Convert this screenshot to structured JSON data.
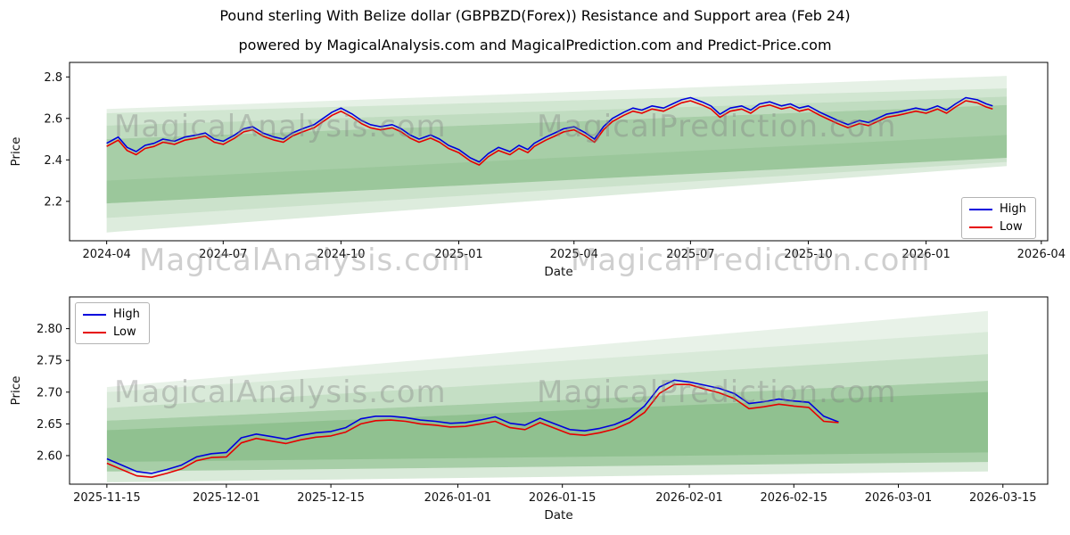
{
  "title": "Pound sterling With Belize dollar (GBPBZD(Forex)) Resistance and Support area (Feb 24)",
  "subtitle": "powered by MagicalAnalysis.com and MagicalPrediction.com and Predict-Price.com",
  "watermarks": {
    "analysis": "MagicalAnalysis.com",
    "prediction": "MagicalPrediction.com"
  },
  "colors": {
    "high_line": "#0000dd",
    "low_line": "#e60000",
    "band_green": "#2e8b2e",
    "watermark_gray": "#808080"
  },
  "chart_data": [
    {
      "type": "line",
      "title": "",
      "xlabel": "Date",
      "ylabel": "Price",
      "legend_position": "lower right",
      "grid": false,
      "xlim": [
        "2024-03-03",
        "2026-04-06"
      ],
      "ylim": [
        2.01,
        2.87
      ],
      "xticks": [
        {
          "label": "2024-04",
          "date": "2024-04-01"
        },
        {
          "label": "2024-07",
          "date": "2024-07-01"
        },
        {
          "label": "2024-10",
          "date": "2024-10-01"
        },
        {
          "label": "2025-01",
          "date": "2025-01-01"
        },
        {
          "label": "2025-04",
          "date": "2025-04-01"
        },
        {
          "label": "2025-07",
          "date": "2025-07-01"
        },
        {
          "label": "2025-10",
          "date": "2025-10-01"
        },
        {
          "label": "2026-01",
          "date": "2026-01-01"
        },
        {
          "label": "2026-04",
          "date": "2026-04-01"
        }
      ],
      "yticks": [
        {
          "label": "2.2",
          "value": 2.2
        },
        {
          "label": "2.4",
          "value": 2.4
        },
        {
          "label": "2.6",
          "value": 2.6
        },
        {
          "label": "2.8",
          "value": 2.8
        }
      ],
      "dates": [
        "2024-04-01",
        "2024-04-10",
        "2024-04-17",
        "2024-04-24",
        "2024-05-01",
        "2024-05-08",
        "2024-05-15",
        "2024-05-24",
        "2024-06-01",
        "2024-06-10",
        "2024-06-17",
        "2024-06-24",
        "2024-07-01",
        "2024-07-10",
        "2024-07-17",
        "2024-07-24",
        "2024-08-01",
        "2024-08-10",
        "2024-08-17",
        "2024-08-24",
        "2024-09-01",
        "2024-09-10",
        "2024-09-17",
        "2024-09-24",
        "2024-10-01",
        "2024-10-10",
        "2024-10-17",
        "2024-10-24",
        "2024-11-01",
        "2024-11-10",
        "2024-11-17",
        "2024-11-24",
        "2024-12-01",
        "2024-12-10",
        "2024-12-17",
        "2024-12-24",
        "2025-01-01",
        "2025-01-10",
        "2025-01-17",
        "2025-01-24",
        "2025-02-01",
        "2025-02-10",
        "2025-02-17",
        "2025-02-24",
        "2025-03-01",
        "2025-03-10",
        "2025-03-17",
        "2025-03-24",
        "2025-04-01",
        "2025-04-10",
        "2025-04-17",
        "2025-04-24",
        "2025-05-01",
        "2025-05-10",
        "2025-05-17",
        "2025-05-24",
        "2025-06-01",
        "2025-06-10",
        "2025-06-17",
        "2025-06-24",
        "2025-07-01",
        "2025-07-10",
        "2025-07-17",
        "2025-07-24",
        "2025-08-01",
        "2025-08-10",
        "2025-08-17",
        "2025-08-24",
        "2025-09-01",
        "2025-09-10",
        "2025-09-17",
        "2025-09-24",
        "2025-10-01",
        "2025-10-10",
        "2025-10-17",
        "2025-10-24",
        "2025-11-01",
        "2025-11-10",
        "2025-11-17",
        "2025-11-24",
        "2025-12-01",
        "2025-12-10",
        "2025-12-17",
        "2025-12-24",
        "2026-01-01",
        "2026-01-10",
        "2026-01-17",
        "2026-01-24",
        "2026-02-01",
        "2026-02-10",
        "2026-02-17",
        "2026-02-22"
      ],
      "series": [
        {
          "name": "High",
          "color": "#0000dd",
          "values": [
            2.48,
            2.51,
            2.46,
            2.44,
            2.47,
            2.48,
            2.5,
            2.49,
            2.51,
            2.52,
            2.53,
            2.5,
            2.49,
            2.52,
            2.55,
            2.56,
            2.53,
            2.51,
            2.5,
            2.53,
            2.55,
            2.57,
            2.6,
            2.63,
            2.65,
            2.62,
            2.59,
            2.57,
            2.56,
            2.57,
            2.55,
            2.52,
            2.5,
            2.52,
            2.5,
            2.47,
            2.45,
            2.41,
            2.39,
            2.43,
            2.46,
            2.44,
            2.47,
            2.45,
            2.48,
            2.51,
            2.53,
            2.55,
            2.56,
            2.53,
            2.5,
            2.56,
            2.6,
            2.63,
            2.65,
            2.64,
            2.66,
            2.65,
            2.67,
            2.69,
            2.7,
            2.68,
            2.66,
            2.62,
            2.65,
            2.66,
            2.64,
            2.67,
            2.68,
            2.66,
            2.67,
            2.65,
            2.66,
            2.63,
            2.61,
            2.59,
            2.57,
            2.59,
            2.58,
            2.6,
            2.62,
            2.63,
            2.64,
            2.65,
            2.64,
            2.66,
            2.64,
            2.67,
            2.7,
            2.69,
            2.67,
            2.66
          ]
        },
        {
          "name": "Low",
          "color": "#e60000",
          "values": [
            2.465,
            2.495,
            2.445,
            2.425,
            2.455,
            2.465,
            2.485,
            2.475,
            2.495,
            2.505,
            2.515,
            2.485,
            2.475,
            2.505,
            2.535,
            2.545,
            2.515,
            2.495,
            2.485,
            2.515,
            2.535,
            2.555,
            2.585,
            2.615,
            2.635,
            2.605,
            2.575,
            2.555,
            2.545,
            2.555,
            2.535,
            2.505,
            2.485,
            2.505,
            2.485,
            2.455,
            2.435,
            2.395,
            2.375,
            2.415,
            2.445,
            2.425,
            2.455,
            2.435,
            2.465,
            2.495,
            2.515,
            2.535,
            2.545,
            2.515,
            2.485,
            2.545,
            2.585,
            2.615,
            2.635,
            2.625,
            2.645,
            2.635,
            2.655,
            2.675,
            2.685,
            2.665,
            2.645,
            2.605,
            2.635,
            2.645,
            2.625,
            2.655,
            2.665,
            2.645,
            2.655,
            2.635,
            2.645,
            2.615,
            2.595,
            2.575,
            2.555,
            2.575,
            2.565,
            2.585,
            2.605,
            2.615,
            2.625,
            2.635,
            2.625,
            2.645,
            2.625,
            2.655,
            2.685,
            2.675,
            2.655,
            2.645
          ]
        }
      ],
      "bands": {
        "color": "#2e8b2e",
        "x": [
          "2024-04-01",
          "2026-03-05"
        ],
        "wedges": [
          {
            "bottom": [
              2.19,
              2.41
            ],
            "top": [
              2.5,
              2.665
            ],
            "opacity": 0.42
          },
          {
            "bottom": [
              2.05,
              2.37
            ],
            "top": [
              2.19,
              2.41
            ],
            "opacity": 0.16
          },
          {
            "bottom": [
              2.5,
              2.665
            ],
            "top": [
              2.565,
              2.705
            ],
            "opacity": 0.3
          },
          {
            "bottom": [
              2.565,
              2.705
            ],
            "top": [
              2.625,
              2.745
            ],
            "opacity": 0.22
          },
          {
            "bottom": [
              2.625,
              2.745
            ],
            "top": [
              2.645,
              2.805
            ],
            "opacity": 0.12
          },
          {
            "bottom": [
              2.12,
              2.39
            ],
            "top": [
              2.3,
              2.52
            ],
            "opacity": 0.1
          }
        ]
      }
    },
    {
      "type": "line",
      "title": "",
      "xlabel": "Date",
      "ylabel": "Price",
      "legend_position": "upper left",
      "grid": false,
      "xlim": [
        "2025-11-10",
        "2026-03-21"
      ],
      "ylim": [
        2.555,
        2.85
      ],
      "xticks": [
        {
          "label": "2025-11-15",
          "date": "2025-11-15"
        },
        {
          "label": "2025-12-01",
          "date": "2025-12-01"
        },
        {
          "label": "2025-12-15",
          "date": "2025-12-15"
        },
        {
          "label": "2026-01-01",
          "date": "2026-01-01"
        },
        {
          "label": "2026-01-15",
          "date": "2026-01-15"
        },
        {
          "label": "2026-02-01",
          "date": "2026-02-01"
        },
        {
          "label": "2026-02-15",
          "date": "2026-02-15"
        },
        {
          "label": "2026-03-01",
          "date": "2026-03-01"
        },
        {
          "label": "2026-03-15",
          "date": "2026-03-15"
        }
      ],
      "yticks": [
        {
          "label": "2.60",
          "value": 2.6
        },
        {
          "label": "2.65",
          "value": 2.65
        },
        {
          "label": "2.70",
          "value": 2.7
        },
        {
          "label": "2.75",
          "value": 2.75
        },
        {
          "label": "2.80",
          "value": 2.8
        }
      ],
      "dates": [
        "2025-11-15",
        "2025-11-17",
        "2025-11-19",
        "2025-11-21",
        "2025-11-23",
        "2025-11-25",
        "2025-11-27",
        "2025-11-29",
        "2025-12-01",
        "2025-12-03",
        "2025-12-05",
        "2025-12-07",
        "2025-12-09",
        "2025-12-11",
        "2025-12-13",
        "2025-12-15",
        "2025-12-17",
        "2025-12-19",
        "2025-12-21",
        "2025-12-23",
        "2025-12-25",
        "2025-12-27",
        "2025-12-29",
        "2025-12-31",
        "2026-01-02",
        "2026-01-04",
        "2026-01-06",
        "2026-01-08",
        "2026-01-10",
        "2026-01-12",
        "2026-01-14",
        "2026-01-16",
        "2026-01-18",
        "2026-01-20",
        "2026-01-22",
        "2026-01-24",
        "2026-01-26",
        "2026-01-28",
        "2026-01-30",
        "2026-02-01",
        "2026-02-03",
        "2026-02-05",
        "2026-02-07",
        "2026-02-09",
        "2026-02-11",
        "2026-02-13",
        "2026-02-15",
        "2026-02-17",
        "2026-02-19",
        "2026-02-21"
      ],
      "series": [
        {
          "name": "High",
          "color": "#0000dd",
          "values": [
            2.595,
            2.585,
            2.575,
            2.572,
            2.578,
            2.585,
            2.598,
            2.603,
            2.605,
            2.628,
            2.634,
            2.63,
            2.626,
            2.632,
            2.636,
            2.638,
            2.644,
            2.658,
            2.662,
            2.662,
            2.66,
            2.656,
            2.654,
            2.651,
            2.652,
            2.656,
            2.661,
            2.651,
            2.648,
            2.659,
            2.65,
            2.641,
            2.639,
            2.643,
            2.649,
            2.659,
            2.678,
            2.708,
            2.719,
            2.716,
            2.711,
            2.706,
            2.698,
            2.682,
            2.685,
            2.689,
            2.686,
            2.684,
            2.662,
            2.653
          ]
        },
        {
          "name": "Low",
          "color": "#e60000",
          "values": [
            2.588,
            2.578,
            2.568,
            2.566,
            2.572,
            2.579,
            2.592,
            2.597,
            2.598,
            2.62,
            2.627,
            2.623,
            2.619,
            2.625,
            2.629,
            2.631,
            2.637,
            2.65,
            2.655,
            2.656,
            2.654,
            2.65,
            2.648,
            2.645,
            2.646,
            2.65,
            2.654,
            2.644,
            2.641,
            2.652,
            2.643,
            2.634,
            2.632,
            2.636,
            2.642,
            2.652,
            2.668,
            2.698,
            2.712,
            2.712,
            2.705,
            2.699,
            2.69,
            2.674,
            2.677,
            2.681,
            2.678,
            2.676,
            2.654,
            2.652
          ]
        }
      ],
      "bands": {
        "color": "#2e8b2e",
        "x": [
          "2025-11-15",
          "2026-03-13"
        ],
        "wedges": [
          {
            "bottom": [
              2.575,
              2.59
            ],
            "top": [
              2.655,
              2.718
            ],
            "opacity": 0.42
          },
          {
            "bottom": [
              2.558,
              2.575
            ],
            "top": [
              2.575,
              2.59
            ],
            "opacity": 0.18
          },
          {
            "bottom": [
              2.655,
              2.718
            ],
            "top": [
              2.675,
              2.76
            ],
            "opacity": 0.28
          },
          {
            "bottom": [
              2.675,
              2.76
            ],
            "top": [
              2.7,
              2.795
            ],
            "opacity": 0.18
          },
          {
            "bottom": [
              2.7,
              2.795
            ],
            "top": [
              2.708,
              2.828
            ],
            "opacity": 0.11
          },
          {
            "bottom": [
              2.59,
              2.605
            ],
            "top": [
              2.64,
              2.7
            ],
            "opacity": 0.18
          }
        ]
      }
    }
  ]
}
